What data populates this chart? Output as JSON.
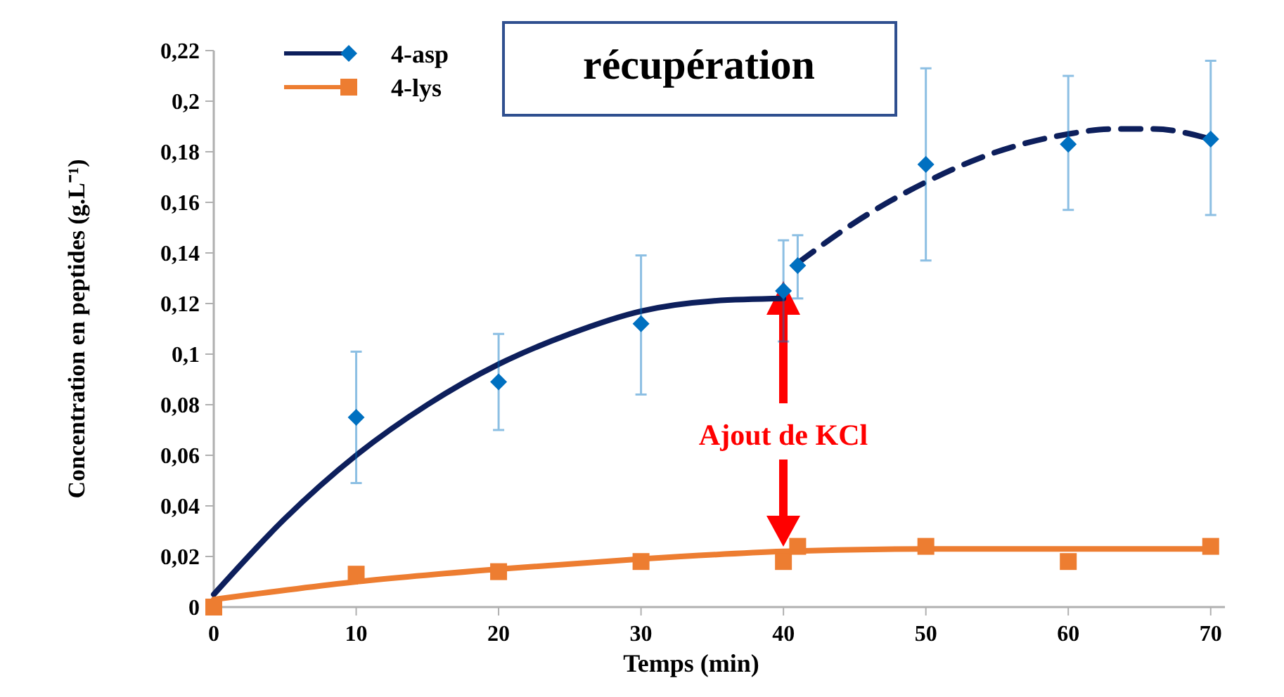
{
  "chart_data": {
    "type": "scatter",
    "xlabel": "Temps (min)",
    "ylabel": "Concentration en peptides (g.L⁻¹)",
    "xlim": [
      0,
      71
    ],
    "xticks": [
      0,
      10,
      20,
      30,
      40,
      50,
      60,
      70
    ],
    "ylim": [
      0,
      0.22
    ],
    "yticks": [
      {
        "value": 0,
        "label": "0"
      },
      {
        "value": 0.02,
        "label": "0,02"
      },
      {
        "value": 0.04,
        "label": "0,04"
      },
      {
        "value": 0.06,
        "label": "0,06"
      },
      {
        "value": 0.08,
        "label": "0,08"
      },
      {
        "value": 0.1,
        "label": "0,1"
      },
      {
        "value": 0.12,
        "label": "0,12"
      },
      {
        "value": 0.14,
        "label": "0,14"
      },
      {
        "value": 0.16,
        "label": "0,16"
      },
      {
        "value": 0.18,
        "label": "0,18"
      },
      {
        "value": 0.2,
        "label": "0,2"
      },
      {
        "value": 0.22,
        "label": "0,22"
      }
    ],
    "grid": false,
    "legend": "top left",
    "annotations": [
      "récupération",
      "Ajout de KCl"
    ],
    "series": [
      {
        "name": "4-asp",
        "marker": "diamond",
        "color": "#0070c0",
        "x": [
          10,
          20,
          30,
          40,
          41,
          50,
          60,
          70
        ],
        "values": [
          0.075,
          0.089,
          0.112,
          0.125,
          0.135,
          0.175,
          0.183,
          0.185
        ],
        "errors": [
          [
            0.049,
            0.101
          ],
          [
            0.07,
            0.108
          ],
          [
            0.084,
            0.139
          ],
          [
            0.105,
            0.145
          ],
          [
            0.122,
            0.147
          ],
          [
            0.137,
            0.213
          ],
          [
            0.157,
            0.21
          ],
          [
            0.155,
            0.216
          ]
        ]
      },
      {
        "name": "4-lys",
        "marker": "square",
        "color": "#ed7d31",
        "x": [
          0,
          10,
          20,
          30,
          40,
          41,
          50,
          60,
          70
        ],
        "values": [
          0,
          0.013,
          0.014,
          0.018,
          0.018,
          0.024,
          0.024,
          0.018,
          0.024
        ]
      },
      {
        "type": "line",
        "line_style": "solid",
        "color": "#0d1f5c",
        "x": [
          0,
          5,
          10,
          15,
          20,
          25,
          30,
          35,
          40
        ],
        "values": [
          0.005,
          0.035,
          0.06,
          0.08,
          0.096,
          0.108,
          0.117,
          0.121,
          0.122
        ]
      },
      {
        "type": "line",
        "line_style": "dashed",
        "color": "#0d1f5c",
        "x": [
          41,
          45,
          50,
          55,
          60,
          63,
          66,
          70
        ],
        "values": [
          0.136,
          0.152,
          0.168,
          0.18,
          0.187,
          0.189,
          0.189,
          0.185
        ]
      },
      {
        "type": "line",
        "line_style": "solid",
        "color": "#ed7d31",
        "x": [
          0,
          10,
          20,
          30,
          40,
          50,
          60,
          70
        ],
        "values": [
          0.003,
          0.01,
          0.015,
          0.019,
          0.022,
          0.023,
          0.023,
          0.023
        ]
      }
    ]
  }
}
